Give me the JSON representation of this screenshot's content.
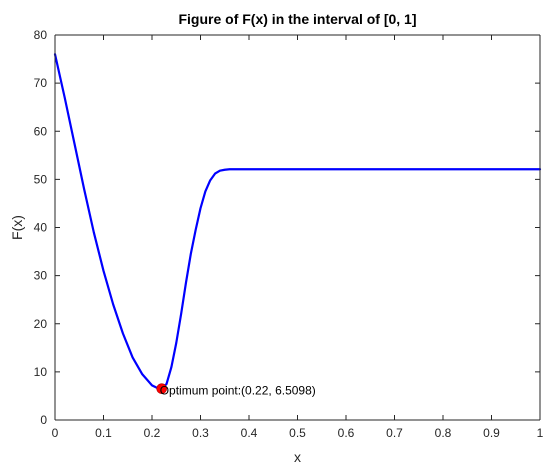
{
  "chart_data": {
    "type": "line",
    "title": "Figure of F(x) in the interval of [0, 1]",
    "xlabel": "x",
    "ylabel": "F(x)",
    "xlim": [
      0,
      1
    ],
    "ylim": [
      0,
      80
    ],
    "xticks": [
      0,
      0.1,
      0.2,
      0.3,
      0.4,
      0.5,
      0.6,
      0.7,
      0.8,
      0.9,
      1
    ],
    "xtick_labels": [
      "0",
      "0.1",
      "0.2",
      "0.3",
      "0.4",
      "0.5",
      "0.6",
      "0.7",
      "0.8",
      "0.9",
      "1"
    ],
    "yticks": [
      0,
      10,
      20,
      30,
      40,
      50,
      60,
      70,
      80
    ],
    "ytick_labels": [
      "0",
      "10",
      "20",
      "30",
      "40",
      "50",
      "60",
      "70",
      "80"
    ],
    "grid": false,
    "series": [
      {
        "color": "#0000ff",
        "x": [
          0,
          0.02,
          0.04,
          0.06,
          0.08,
          0.1,
          0.12,
          0.14,
          0.16,
          0.18,
          0.2,
          0.21,
          0.22,
          0.23,
          0.24,
          0.25,
          0.26,
          0.27,
          0.28,
          0.29,
          0.3,
          0.31,
          0.32,
          0.33,
          0.34,
          0.35,
          0.36,
          0.38,
          0.4,
          0.5,
          0.6,
          0.7,
          0.8,
          0.9,
          1
        ],
        "y": [
          76,
          67,
          57.5,
          48,
          39,
          31,
          24,
          18,
          13,
          9.5,
          7.2,
          6.7,
          6.5,
          7.5,
          11,
          16,
          22,
          28.5,
          34.5,
          39.5,
          44,
          47.5,
          49.8,
          51.2,
          51.8,
          52,
          52.1,
          52.1,
          52.1,
          52.1,
          52.1,
          52.1,
          52.1,
          52.1,
          52.1
        ]
      }
    ],
    "markers": [
      {
        "x": 0.22,
        "y": 6.5098,
        "color": "#ff0000"
      }
    ],
    "annotations": [
      {
        "x": 0.22,
        "y": 6.5098,
        "text": "Optimum point:(0.22, 6.5098)"
      }
    ]
  }
}
